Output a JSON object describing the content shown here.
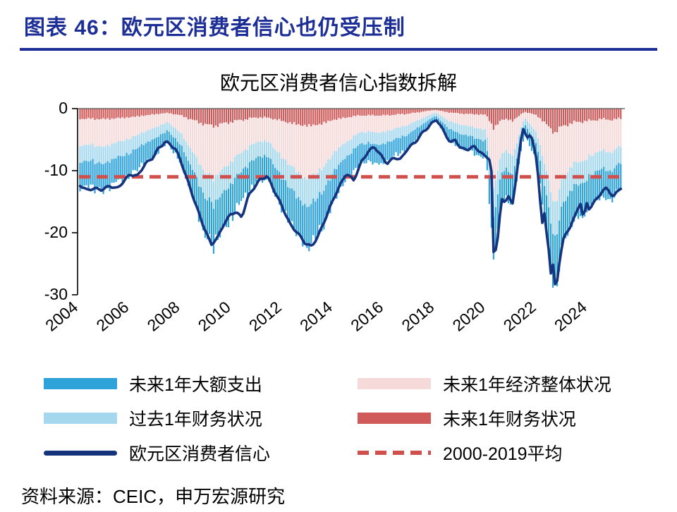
{
  "header": {
    "title": "图表 46：欧元区消费者信心也仍受压制"
  },
  "footer": {
    "source": "资料来源：CEIC，申万宏源研究"
  },
  "chart_data": {
    "type": "bar",
    "subtype": "stacked-monthly-bars-with-line",
    "title": "欧元区消费者信心指数拆解",
    "ylim": [
      -30,
      0
    ],
    "yticks": [
      0,
      -10,
      -20,
      -30
    ],
    "xtick_years": [
      2004,
      2006,
      2008,
      2010,
      2012,
      2014,
      2016,
      2018,
      2020,
      2022,
      2024
    ],
    "x_range": [
      2004,
      2025.45
    ],
    "grid": false,
    "legend_position": "bottom",
    "note": "component values are contribution depths below zero (plotted as negative stacked bars); line is the headline index",
    "average_line": {
      "name": "2000-2019平均",
      "value": -11,
      "color": "#d0504e"
    },
    "line_series": {
      "name": "欧元区消费者信心",
      "color": "#16337e",
      "t": [
        2004.0,
        2004.3,
        2004.6,
        2004.9,
        2005.2,
        2005.5,
        2005.8,
        2006.0,
        2006.3,
        2006.6,
        2006.9,
        2007.1,
        2007.4,
        2007.6,
        2007.8,
        2008.0,
        2008.3,
        2008.6,
        2008.9,
        2009.2,
        2009.45,
        2009.7,
        2009.95,
        2010.15,
        2010.4,
        2010.65,
        2010.9,
        2011.1,
        2011.4,
        2011.7,
        2012.0,
        2012.3,
        2012.6,
        2012.9,
        2013.15,
        2013.4,
        2013.7,
        2014.0,
        2014.25,
        2014.5,
        2014.8,
        2015.1,
        2015.35,
        2015.6,
        2015.85,
        2016.1,
        2016.4,
        2016.65,
        2016.9,
        2017.2,
        2017.5,
        2017.8,
        2018.05,
        2018.3,
        2018.6,
        2018.8,
        2019.0,
        2019.3,
        2019.55,
        2019.9,
        2020.1,
        2020.2,
        2020.3,
        2020.45,
        2020.6,
        2020.75,
        2020.85,
        2021.05,
        2021.2,
        2021.35,
        2021.45,
        2021.6,
        2021.75,
        2021.9,
        2022.0,
        2022.2,
        2022.3,
        2022.4,
        2022.5,
        2022.55,
        2022.62,
        2022.72,
        2022.8,
        2022.9,
        2023.05,
        2023.3,
        2023.5,
        2023.6,
        2023.72,
        2023.82,
        2023.95,
        2024.05,
        2024.3,
        2024.55,
        2024.75,
        2024.9,
        2025.0,
        2025.1,
        2025.25
      ],
      "v": [
        -12.3,
        -13.2,
        -12.8,
        -13.0,
        -12.5,
        -13.0,
        -11.5,
        -10.5,
        -10.8,
        -9.0,
        -8.0,
        -6.5,
        -5.2,
        -5.8,
        -6.6,
        -8.5,
        -12.0,
        -15.5,
        -19.0,
        -22.0,
        -20.8,
        -18.5,
        -17.0,
        -16.6,
        -17.6,
        -14.2,
        -12.6,
        -11.4,
        -10.8,
        -13.5,
        -16.0,
        -18.6,
        -20.0,
        -21.8,
        -22.3,
        -20.5,
        -17.5,
        -14.5,
        -12.5,
        -10.5,
        -11.5,
        -8.5,
        -7.0,
        -6.2,
        -7.5,
        -8.8,
        -7.8,
        -8.2,
        -6.6,
        -5.5,
        -3.8,
        -2.6,
        -1.8,
        -3.5,
        -5.5,
        -4.9,
        -6.4,
        -6.6,
        -6.2,
        -7.5,
        -7.8,
        -8.8,
        -24.5,
        -21.0,
        -14.6,
        -15.5,
        -13.8,
        -15.5,
        -10.5,
        -5.2,
        -3.3,
        -4.6,
        -4.0,
        -6.8,
        -8.6,
        -18.7,
        -16.9,
        -21.0,
        -23.5,
        -27.0,
        -25.0,
        -28.8,
        -27.5,
        -23.9,
        -20.9,
        -19.1,
        -17.4,
        -16.1,
        -15.1,
        -17.8,
        -15.1,
        -16.1,
        -14.8,
        -13.5,
        -12.8,
        -13.7,
        -14.3,
        -13.6,
        -12.7
      ]
    },
    "component_t": [
      2004.0,
      2005.0,
      2006.0,
      2007.0,
      2007.5,
      2008.0,
      2008.5,
      2009.0,
      2009.3,
      2010.0,
      2011.0,
      2011.5,
      2012.0,
      2012.5,
      2013.0,
      2013.5,
      2014.0,
      2015.0,
      2016.0,
      2017.0,
      2018.0,
      2018.5,
      2019.0,
      2020.0,
      2020.3,
      2020.6,
      2020.85,
      2021.05,
      2021.5,
      2022.0,
      2022.4,
      2022.7,
      2023.0,
      2023.5,
      2024.0,
      2024.5,
      2025.0,
      2025.25
    ],
    "components": [
      {
        "name": "未来1年财务状况",
        "color": "#d05a5a",
        "stack_order": 1,
        "values": [
          1.6,
          1.7,
          1.4,
          0.9,
          0.7,
          1.1,
          1.9,
          2.6,
          2.8,
          2.1,
          1.4,
          1.5,
          2.0,
          2.5,
          2.8,
          2.5,
          1.8,
          1.1,
          1.1,
          0.8,
          0.2,
          0.6,
          0.8,
          1.0,
          3.2,
          1.8,
          1.7,
          2.0,
          0.5,
          1.1,
          2.7,
          3.9,
          2.8,
          2.2,
          2.0,
          1.7,
          1.8,
          1.6
        ]
      },
      {
        "name": "未来1年经济整体状况",
        "color": "#f6dada",
        "stack_order": 2,
        "values": [
          4.2,
          4.4,
          3.4,
          2.1,
          1.5,
          2.8,
          5.4,
          7.8,
          8.5,
          6.2,
          3.8,
          4.0,
          5.9,
          7.5,
          8.6,
          7.5,
          5.3,
          2.7,
          2.7,
          1.7,
          0.4,
          1.3,
          1.8,
          2.4,
          10.0,
          5.3,
          5.0,
          5.7,
          0.9,
          2.8,
          8.2,
          11.6,
          8.4,
          6.5,
          6.0,
          5.0,
          5.2,
          4.5
        ]
      },
      {
        "name": "过去1年财务状况",
        "color": "#a5d8ef",
        "stack_order": 3,
        "values": [
          2.6,
          2.7,
          2.3,
          1.7,
          1.4,
          1.9,
          3.0,
          4.0,
          4.3,
          3.5,
          2.4,
          2.5,
          3.3,
          4.0,
          4.4,
          4.0,
          3.0,
          1.9,
          1.9,
          1.5,
          0.5,
          1.2,
          1.5,
          1.8,
          4.8,
          3.0,
          2.9,
          3.2,
          1.0,
          1.9,
          4.2,
          5.6,
          4.3,
          3.6,
          3.4,
          2.9,
          3.0,
          2.7
        ]
      },
      {
        "name": "未来1年大额支出",
        "color": "#2ea3da",
        "stack_order": 4,
        "values": [
          3.9,
          4.0,
          3.4,
          2.5,
          1.9,
          2.7,
          4.2,
          5.6,
          6.1,
          5.0,
          3.6,
          3.7,
          4.8,
          5.5,
          6.1,
          5.5,
          4.4,
          2.8,
          2.8,
          2.0,
          0.7,
          1.7,
          2.2,
          2.5,
          6.5,
          4.4,
          4.2,
          4.6,
          1.4,
          2.7,
          5.9,
          7.7,
          6.0,
          5.1,
          4.7,
          4.2,
          4.3,
          3.9
        ]
      }
    ],
    "legend": {
      "left": [
        {
          "name": "未来1年大额支出",
          "swatch": "bar",
          "color": "#2ea3da"
        },
        {
          "name": "过去1年财务状况",
          "swatch": "bar",
          "color": "#a5d8ef"
        },
        {
          "name": "欧元区消费者信心",
          "swatch": "line",
          "color": "#16337e"
        }
      ],
      "right": [
        {
          "name": "未来1年经济整体状况",
          "swatch": "bar",
          "color": "#f6dada"
        },
        {
          "name": "未来1年财务状况",
          "swatch": "bar",
          "color": "#d05a5a"
        },
        {
          "name": "2000-2019平均",
          "swatch": "dashed",
          "color": "#d0504e"
        }
      ]
    }
  }
}
